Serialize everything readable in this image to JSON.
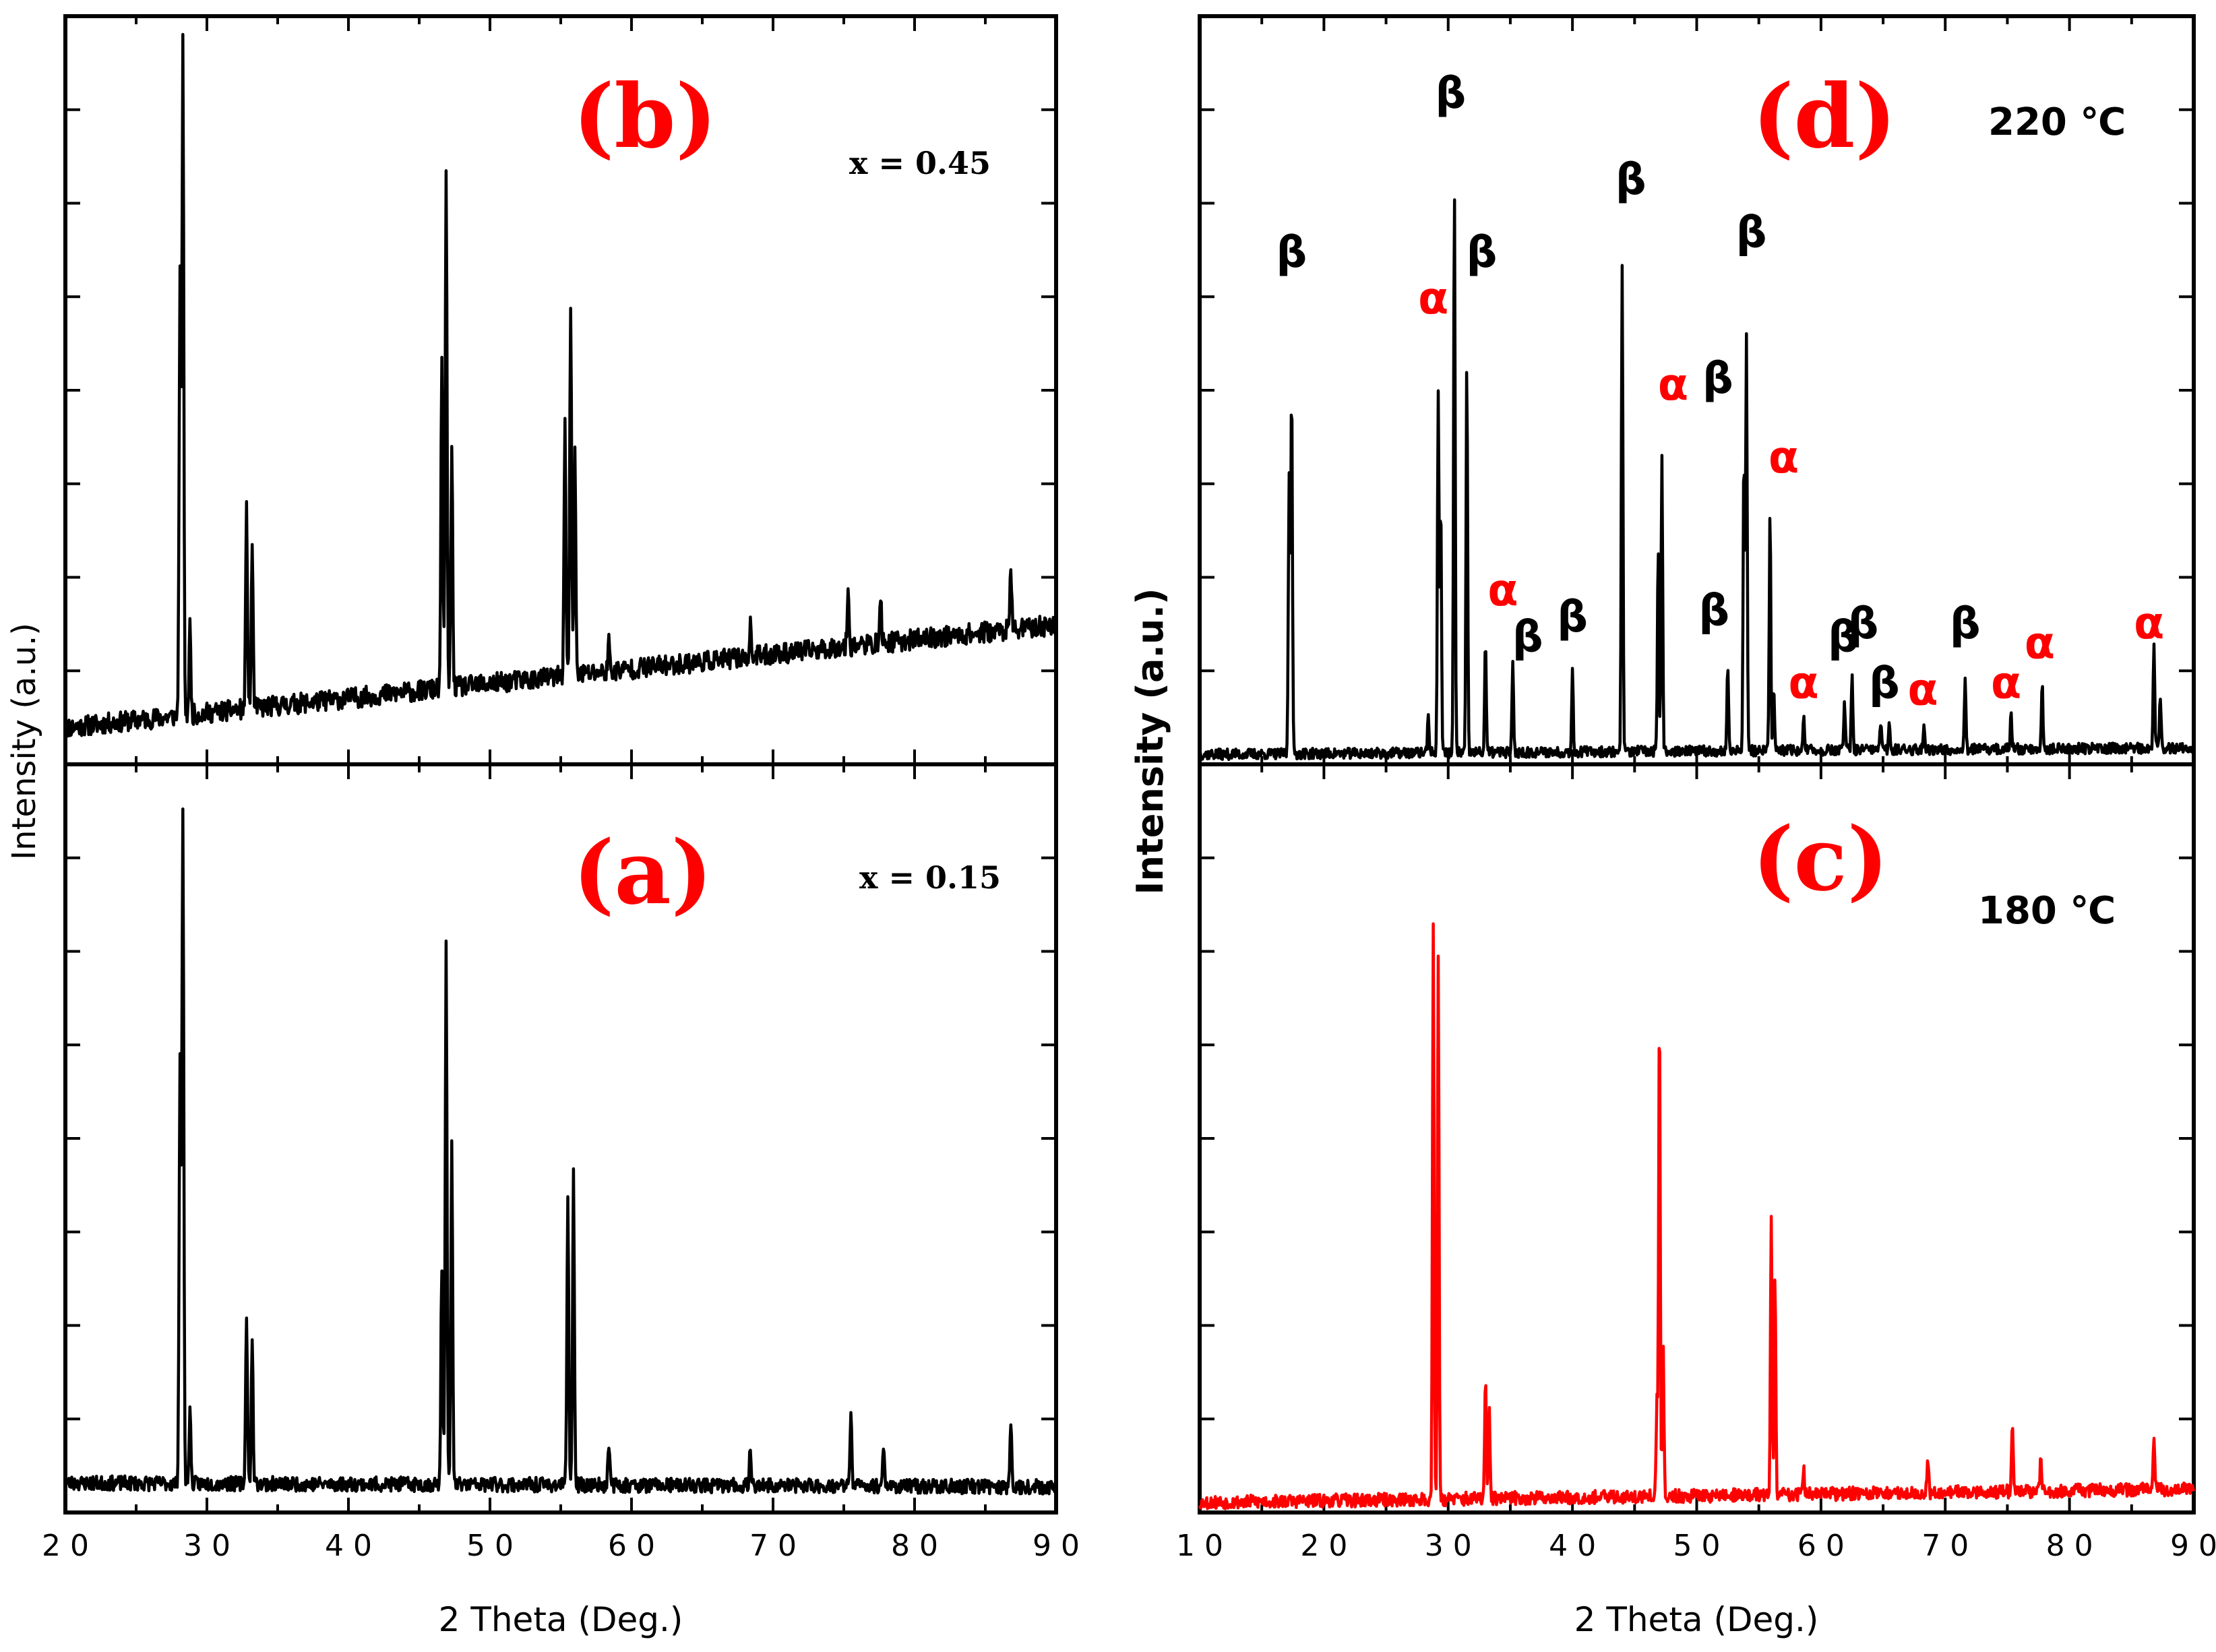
{
  "chart_data": [
    {
      "panel": "(b)",
      "type": "line",
      "annotation": "x = 0.45",
      "xlabel": "2 Theta (Deg.)",
      "ylabel": "Intensity (a.u.)",
      "xlim": [
        20,
        90
      ],
      "ylim": [
        0,
        100
      ],
      "x_ticks": [
        "20",
        "30",
        "40",
        "50",
        "60",
        "70",
        "80",
        "90"
      ],
      "series_color": "#000000",
      "baseline": {
        "start": 5,
        "end": 19,
        "noise": 1.4,
        "seed": 11
      },
      "peaks": [
        {
          "x": 28.3,
          "height": 91
        },
        {
          "x": 28.1,
          "height": 60
        },
        {
          "x": 28.8,
          "height": 12
        },
        {
          "x": 32.8,
          "height": 27
        },
        {
          "x": 33.2,
          "height": 22
        },
        {
          "x": 46.9,
          "height": 70
        },
        {
          "x": 46.6,
          "height": 44
        },
        {
          "x": 47.3,
          "height": 33
        },
        {
          "x": 55.3,
          "height": 35
        },
        {
          "x": 55.7,
          "height": 50
        },
        {
          "x": 56.0,
          "height": 30
        },
        {
          "x": 58.4,
          "height": 4
        },
        {
          "x": 68.4,
          "height": 4
        },
        {
          "x": 75.3,
          "height": 8
        },
        {
          "x": 77.6,
          "height": 6
        },
        {
          "x": 86.8,
          "height": 8
        }
      ]
    },
    {
      "panel": "(a)",
      "type": "line",
      "annotation": "x = 0.15",
      "xlabel": "2 Theta (Deg.)",
      "ylabel": "Intensity (a.u.)",
      "xlim": [
        20,
        90
      ],
      "ylim": [
        0,
        100
      ],
      "x_ticks": [
        "20",
        "30",
        "40",
        "50",
        "60",
        "70",
        "80",
        "90"
      ],
      "series_color": "#000000",
      "baseline": {
        "start": 4,
        "end": 3.5,
        "noise": 1.0,
        "seed": 23
      },
      "peaks": [
        {
          "x": 28.3,
          "height": 92
        },
        {
          "x": 28.1,
          "height": 58
        },
        {
          "x": 28.8,
          "height": 10
        },
        {
          "x": 32.8,
          "height": 23
        },
        {
          "x": 33.2,
          "height": 19
        },
        {
          "x": 46.9,
          "height": 73
        },
        {
          "x": 46.6,
          "height": 30
        },
        {
          "x": 47.3,
          "height": 46
        },
        {
          "x": 55.5,
          "height": 40
        },
        {
          "x": 55.9,
          "height": 42
        },
        {
          "x": 58.4,
          "height": 6
        },
        {
          "x": 68.4,
          "height": 5
        },
        {
          "x": 75.5,
          "height": 10
        },
        {
          "x": 77.8,
          "height": 6
        },
        {
          "x": 86.8,
          "height": 9
        }
      ]
    },
    {
      "panel": "(d)",
      "type": "line",
      "annotation": "220 ℃",
      "xlabel": "2 Theta (Deg.)",
      "ylabel": "Intensity (a.u.)",
      "xlim": [
        10,
        90
      ],
      "ylim": [
        0,
        100
      ],
      "x_ticks": [
        "10",
        "20",
        "30",
        "40",
        "50",
        "60",
        "70",
        "80",
        "90"
      ],
      "series_color": "#000000",
      "baseline": {
        "start": 1.5,
        "end": 2.5,
        "noise": 0.8,
        "seed": 37
      },
      "peaks": [
        {
          "x": 17.4,
          "height": 56
        },
        {
          "x": 17.2,
          "height": 42
        },
        {
          "x": 28.4,
          "height": 6
        },
        {
          "x": 29.2,
          "height": 54
        },
        {
          "x": 29.4,
          "height": 37
        },
        {
          "x": 30.5,
          "height": 85
        },
        {
          "x": 31.5,
          "height": 58
        },
        {
          "x": 33.0,
          "height": 17
        },
        {
          "x": 35.2,
          "height": 13
        },
        {
          "x": 40.0,
          "height": 12
        },
        {
          "x": 44.0,
          "height": 74
        },
        {
          "x": 47.2,
          "height": 44
        },
        {
          "x": 46.9,
          "height": 30
        },
        {
          "x": 52.5,
          "height": 13
        },
        {
          "x": 53.8,
          "height": 45
        },
        {
          "x": 54.0,
          "height": 62
        },
        {
          "x": 55.9,
          "height": 36
        },
        {
          "x": 56.2,
          "height": 9
        },
        {
          "x": 58.6,
          "height": 5
        },
        {
          "x": 61.9,
          "height": 7
        },
        {
          "x": 62.5,
          "height": 11
        },
        {
          "x": 64.8,
          "height": 4
        },
        {
          "x": 65.5,
          "height": 4
        },
        {
          "x": 68.3,
          "height": 4
        },
        {
          "x": 71.6,
          "height": 11
        },
        {
          "x": 75.3,
          "height": 5
        },
        {
          "x": 77.8,
          "height": 10
        },
        {
          "x": 86.8,
          "height": 15
        },
        {
          "x": 87.3,
          "height": 8
        }
      ],
      "phase_labels": [
        {
          "text": "β",
          "phase": "beta",
          "x": 17.4,
          "y": 75
        },
        {
          "text": "α",
          "phase": "alpha",
          "x": 28.8,
          "y": 68
        },
        {
          "text": "β",
          "phase": "beta",
          "x": 30.2,
          "y": 99
        },
        {
          "text": "β",
          "phase": "beta",
          "x": 32.7,
          "y": 75
        },
        {
          "text": "α",
          "phase": "alpha",
          "x": 34.4,
          "y": 24
        },
        {
          "text": "β",
          "phase": "beta",
          "x": 36.4,
          "y": 17
        },
        {
          "text": "β",
          "phase": "beta",
          "x": 40.0,
          "y": 20
        },
        {
          "text": "β",
          "phase": "beta",
          "x": 44.7,
          "y": 86
        },
        {
          "text": "α",
          "phase": "alpha",
          "x": 48.1,
          "y": 55
        },
        {
          "text": "β",
          "phase": "beta",
          "x": 51.7,
          "y": 56
        },
        {
          "text": "β",
          "phase": "beta",
          "x": 54.4,
          "y": 78
        },
        {
          "text": "β",
          "phase": "beta",
          "x": 51.4,
          "y": 21
        },
        {
          "text": "α",
          "phase": "alpha",
          "x": 57.0,
          "y": 44
        },
        {
          "text": "α",
          "phase": "alpha",
          "x": 58.6,
          "y": 10
        },
        {
          "text": "β",
          "phase": "beta",
          "x": 61.8,
          "y": 17
        },
        {
          "text": "β",
          "phase": "beta",
          "x": 63.4,
          "y": 19
        },
        {
          "text": "β",
          "phase": "beta",
          "x": 65.1,
          "y": 10
        },
        {
          "text": "α",
          "phase": "alpha",
          "x": 68.2,
          "y": 9
        },
        {
          "text": "β",
          "phase": "beta",
          "x": 71.6,
          "y": 19
        },
        {
          "text": "α",
          "phase": "alpha",
          "x": 74.9,
          "y": 10
        },
        {
          "text": "α",
          "phase": "alpha",
          "x": 77.6,
          "y": 16
        },
        {
          "text": "α",
          "phase": "alpha",
          "x": 86.4,
          "y": 19
        }
      ]
    },
    {
      "panel": "(c)",
      "type": "line",
      "annotation": "180 ℃",
      "xlabel": "2 Theta (Deg.)",
      "ylabel": "Intensity (a.u.)",
      "xlim": [
        10,
        90
      ],
      "ylim": [
        0,
        100
      ],
      "x_ticks": [
        "10",
        "20",
        "30",
        "40",
        "50",
        "60",
        "70",
        "80",
        "90"
      ],
      "series_color": "#ff0000",
      "baseline": {
        "start": 1.5,
        "end": 3.5,
        "noise": 1.0,
        "seed": 53
      },
      "peaks": [
        {
          "x": 28.8,
          "height": 86
        },
        {
          "x": 29.2,
          "height": 81
        },
        {
          "x": 33.0,
          "height": 18
        },
        {
          "x": 33.3,
          "height": 13
        },
        {
          "x": 47.0,
          "height": 73
        },
        {
          "x": 47.3,
          "height": 22
        },
        {
          "x": 46.8,
          "height": 14
        },
        {
          "x": 56.0,
          "height": 42
        },
        {
          "x": 56.3,
          "height": 33
        },
        {
          "x": 58.6,
          "height": 4
        },
        {
          "x": 68.6,
          "height": 5
        },
        {
          "x": 75.4,
          "height": 10
        },
        {
          "x": 77.7,
          "height": 5
        },
        {
          "x": 86.8,
          "height": 7
        }
      ]
    }
  ]
}
